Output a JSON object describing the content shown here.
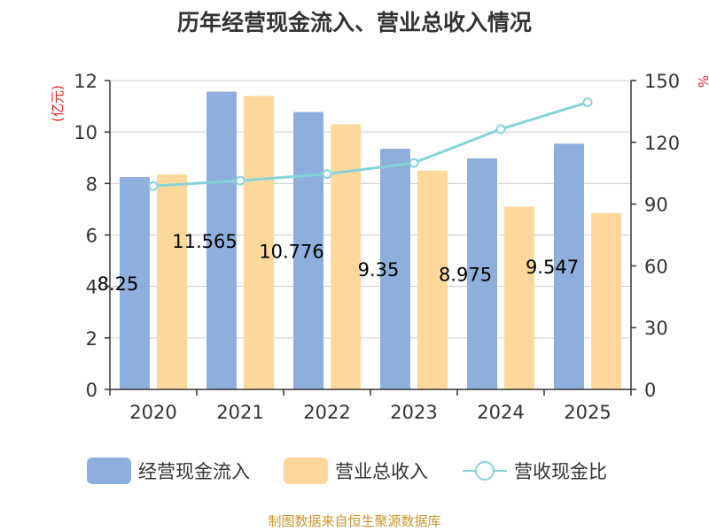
{
  "title": "历年经营现金流入、营业总收入情况",
  "source": "制图数据来自恒生聚源数据库",
  "colors": {
    "cash_inflow": "#8eaedb",
    "revenue": "#fed89a",
    "ratio": "#86d3d9",
    "unit": "#e02020",
    "source": "#c8962e"
  },
  "legend": [
    "经营现金流入",
    "营业总收入",
    "营收现金比"
  ],
  "chart_data": {
    "type": "bar",
    "title": "历年经营现金流入、营业总收入情况",
    "categories": [
      "2020",
      "2021",
      "2022",
      "2023",
      "2024",
      "2025"
    ],
    "y_left": {
      "label": "(亿元)",
      "ylim": [
        0,
        12
      ],
      "ticks": [
        0,
        2,
        4,
        6,
        8,
        10,
        12
      ]
    },
    "y_right": {
      "label": "%",
      "ylim": [
        0,
        150
      ],
      "ticks": [
        0,
        30,
        60,
        90,
        120,
        150
      ]
    },
    "series": [
      {
        "name": "经营现金流入",
        "type": "bar",
        "axis": "left",
        "values": [
          8.25,
          11.565,
          10.776,
          9.35,
          8.975,
          9.547
        ],
        "labels": [
          "8.25",
          "11.565",
          "10.776",
          "9.35",
          "8.975",
          "9.547"
        ]
      },
      {
        "name": "营业总收入",
        "type": "bar",
        "axis": "left",
        "values": [
          8.35,
          11.4,
          10.3,
          8.5,
          7.1,
          6.85
        ]
      },
      {
        "name": "营收现金比",
        "type": "line",
        "axis": "right",
        "values": [
          98.8,
          101.4,
          104.6,
          110,
          126.4,
          139.4
        ]
      }
    ],
    "grid": true,
    "legend_position": "bottom"
  }
}
